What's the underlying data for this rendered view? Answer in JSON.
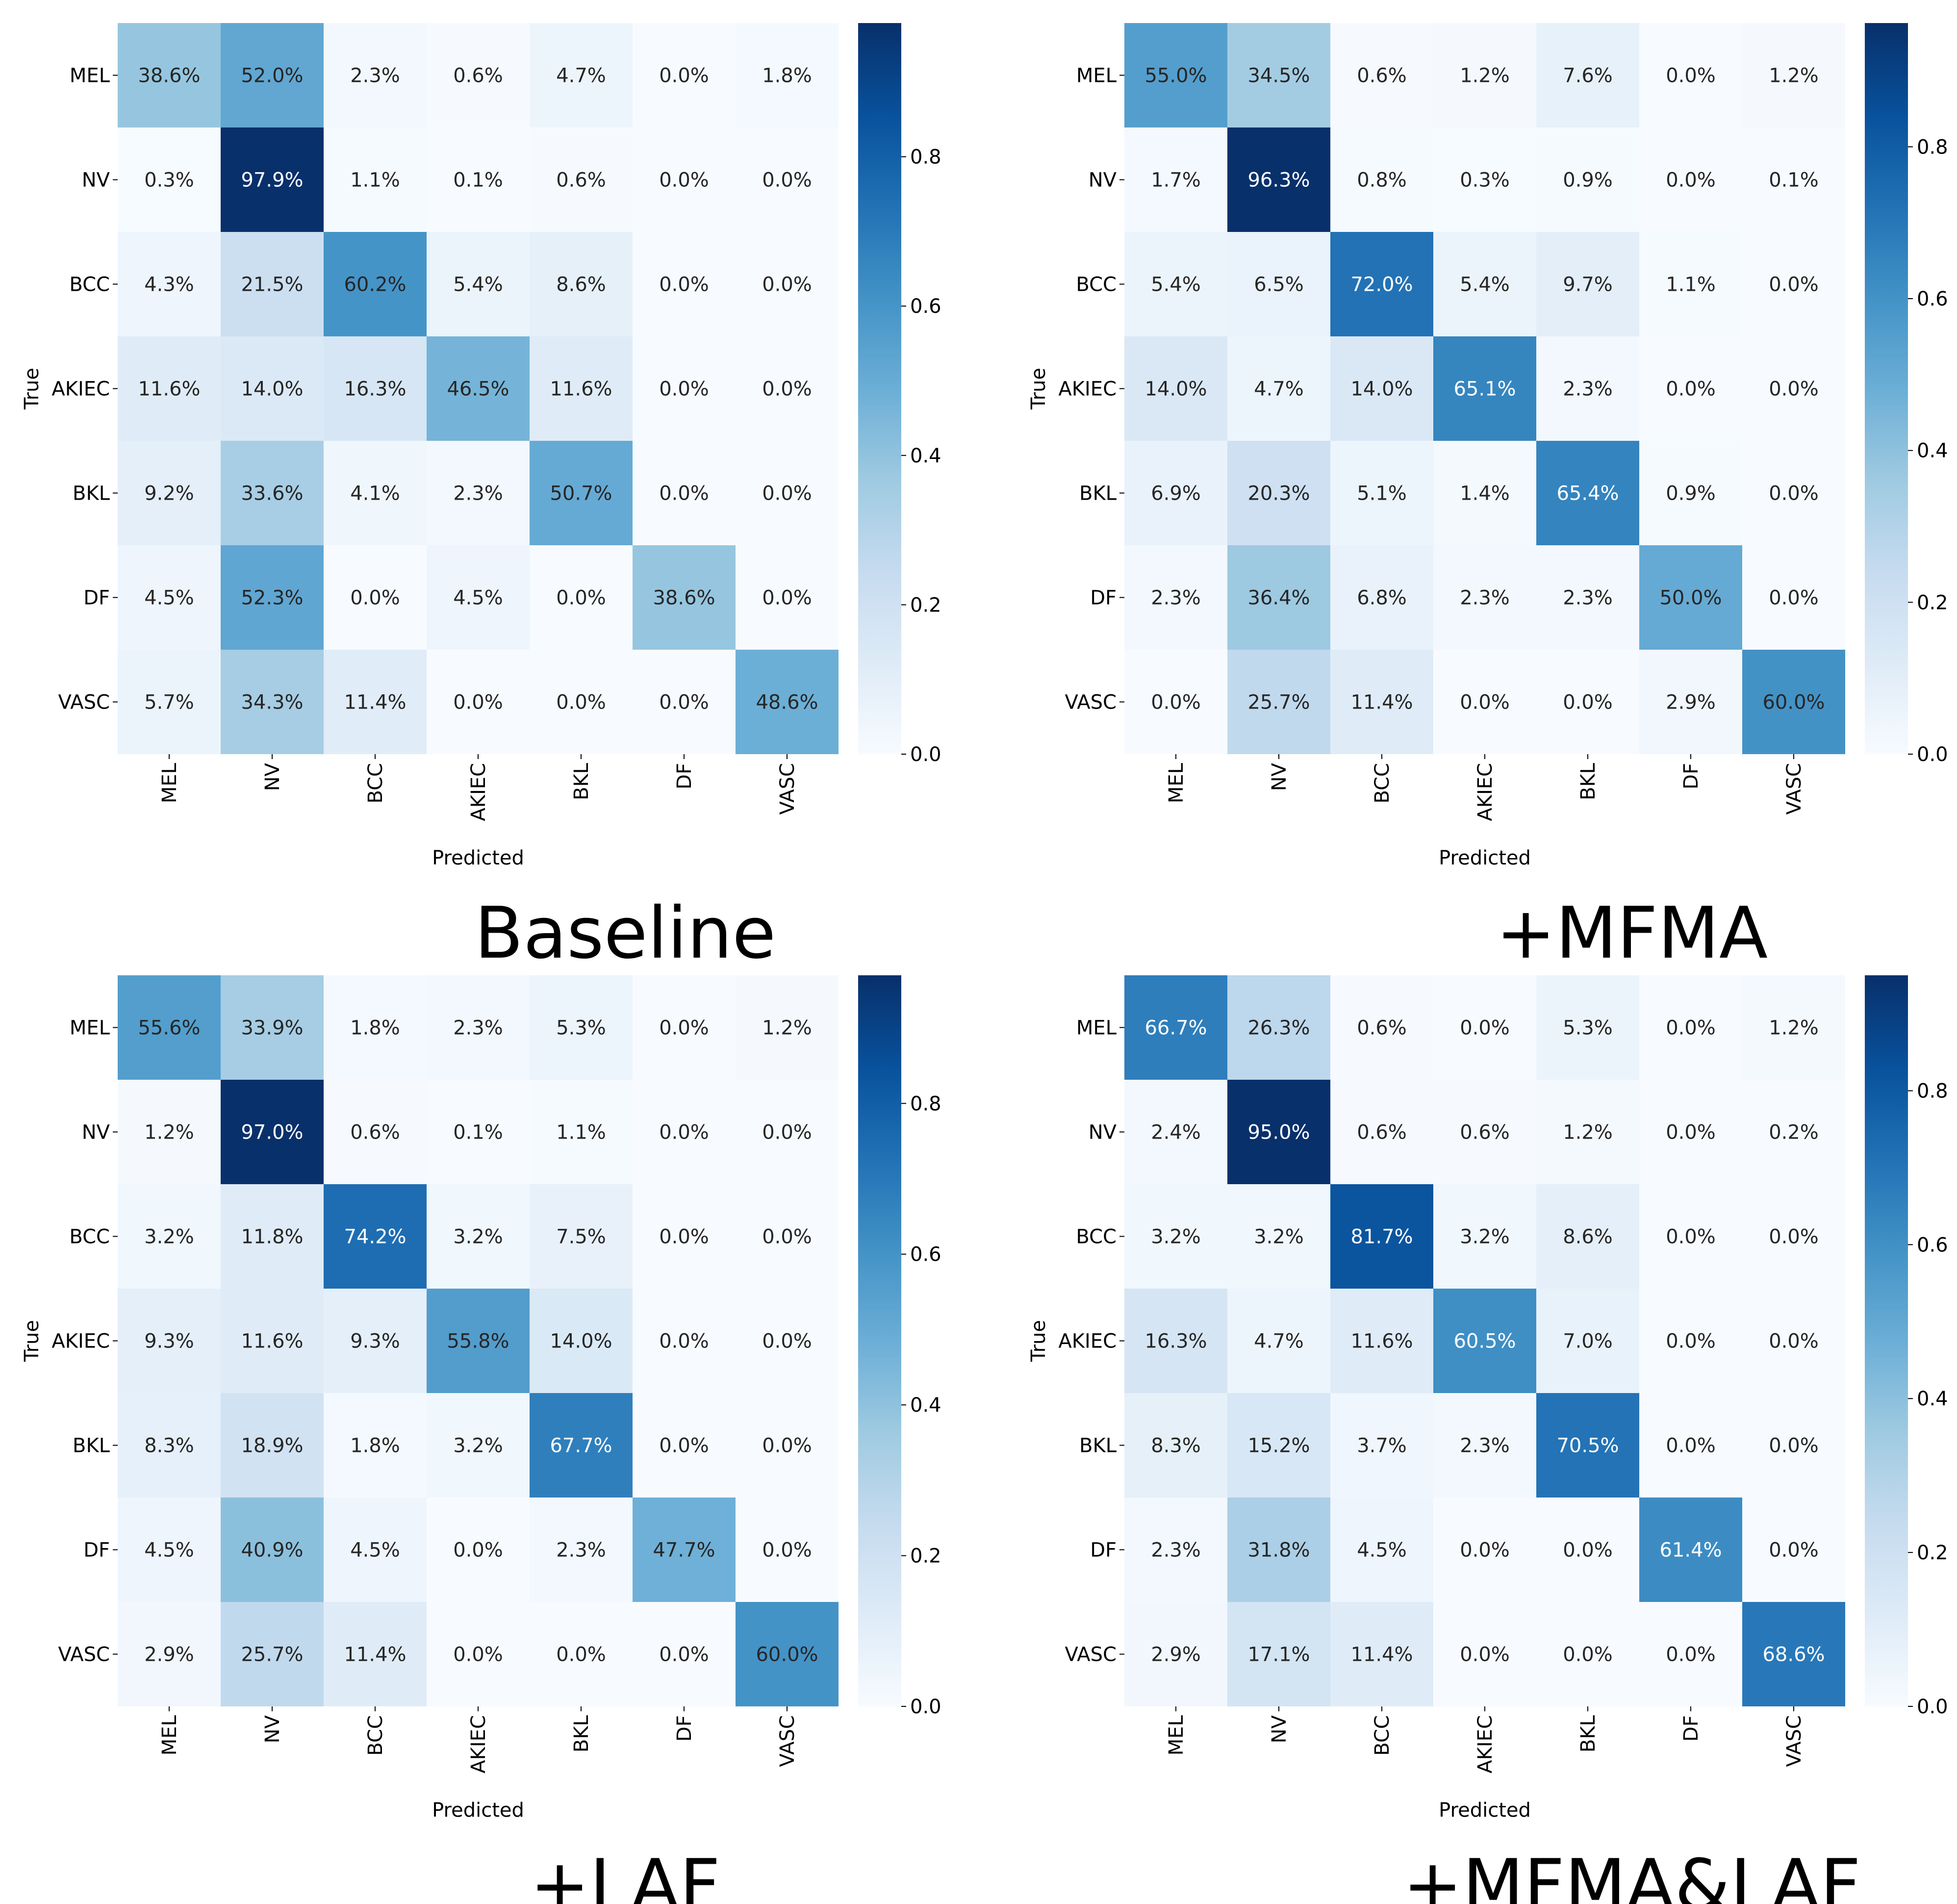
{
  "chart_data": [
    {
      "type": "heatmap",
      "title": "Baseline",
      "xlabel": "Predicted",
      "ylabel": "True",
      "classes": [
        "MEL",
        "NV",
        "BCC",
        "AKIEC",
        "BKL",
        "DF",
        "VASC"
      ],
      "matrix": [
        [
          38.6,
          52.0,
          2.3,
          0.6,
          4.7,
          0.0,
          1.8
        ],
        [
          0.3,
          97.9,
          1.1,
          0.1,
          0.6,
          0.0,
          0.0
        ],
        [
          4.3,
          21.5,
          60.2,
          5.4,
          8.6,
          0.0,
          0.0
        ],
        [
          11.6,
          14.0,
          16.3,
          46.5,
          11.6,
          0.0,
          0.0
        ],
        [
          9.2,
          33.6,
          4.1,
          2.3,
          50.7,
          0.0,
          0.0
        ],
        [
          4.5,
          52.3,
          0.0,
          4.5,
          0.0,
          38.6,
          0.0
        ],
        [
          5.7,
          34.3,
          11.4,
          0.0,
          0.0,
          0.0,
          48.6
        ]
      ],
      "value_suffix": "%",
      "colorbar": {
        "range": [
          0.0,
          0.979
        ],
        "ticks": [
          "0.0",
          "0.2",
          "0.4",
          "0.6",
          "0.8"
        ],
        "tick_values": [
          0.0,
          0.2,
          0.4,
          0.6,
          0.8
        ]
      }
    },
    {
      "type": "heatmap",
      "title": "+MFMA",
      "xlabel": "Predicted",
      "ylabel": "True",
      "classes": [
        "MEL",
        "NV",
        "BCC",
        "AKIEC",
        "BKL",
        "DF",
        "VASC"
      ],
      "matrix": [
        [
          55.0,
          34.5,
          0.6,
          1.2,
          7.6,
          0.0,
          1.2
        ],
        [
          1.7,
          96.3,
          0.8,
          0.3,
          0.9,
          0.0,
          0.1
        ],
        [
          5.4,
          6.5,
          72.0,
          5.4,
          9.7,
          1.1,
          0.0
        ],
        [
          14.0,
          4.7,
          14.0,
          65.1,
          2.3,
          0.0,
          0.0
        ],
        [
          6.9,
          20.3,
          5.1,
          1.4,
          65.4,
          0.9,
          0.0
        ],
        [
          2.3,
          36.4,
          6.8,
          2.3,
          2.3,
          50.0,
          0.0
        ],
        [
          0.0,
          25.7,
          11.4,
          0.0,
          0.0,
          2.9,
          60.0
        ]
      ],
      "value_suffix": "%",
      "colorbar": {
        "range": [
          0.0,
          0.963
        ],
        "ticks": [
          "0.0",
          "0.2",
          "0.4",
          "0.6",
          "0.8"
        ],
        "tick_values": [
          0.0,
          0.2,
          0.4,
          0.6,
          0.8
        ]
      }
    },
    {
      "type": "heatmap",
      "title": "+LAF",
      "xlabel": "Predicted",
      "ylabel": "True",
      "classes": [
        "MEL",
        "NV",
        "BCC",
        "AKIEC",
        "BKL",
        "DF",
        "VASC"
      ],
      "matrix": [
        [
          55.6,
          33.9,
          1.8,
          2.3,
          5.3,
          0.0,
          1.2
        ],
        [
          1.2,
          97.0,
          0.6,
          0.1,
          1.1,
          0.0,
          0.0
        ],
        [
          3.2,
          11.8,
          74.2,
          3.2,
          7.5,
          0.0,
          0.0
        ],
        [
          9.3,
          11.6,
          9.3,
          55.8,
          14.0,
          0.0,
          0.0
        ],
        [
          8.3,
          18.9,
          1.8,
          3.2,
          67.7,
          0.0,
          0.0
        ],
        [
          4.5,
          40.9,
          4.5,
          0.0,
          2.3,
          47.7,
          0.0
        ],
        [
          2.9,
          25.7,
          11.4,
          0.0,
          0.0,
          0.0,
          60.0
        ]
      ],
      "value_suffix": "%",
      "colorbar": {
        "range": [
          0.0,
          0.97
        ],
        "ticks": [
          "0.0",
          "0.2",
          "0.4",
          "0.6",
          "0.8"
        ],
        "tick_values": [
          0.0,
          0.2,
          0.4,
          0.6,
          0.8
        ]
      }
    },
    {
      "type": "heatmap",
      "title": "+MFMA&LAF",
      "xlabel": "Predicted",
      "ylabel": "True",
      "classes": [
        "MEL",
        "NV",
        "BCC",
        "AKIEC",
        "BKL",
        "DF",
        "VASC"
      ],
      "matrix": [
        [
          66.7,
          26.3,
          0.6,
          0.0,
          5.3,
          0.0,
          1.2
        ],
        [
          2.4,
          95.0,
          0.6,
          0.6,
          1.2,
          0.0,
          0.2
        ],
        [
          3.2,
          3.2,
          81.7,
          3.2,
          8.6,
          0.0,
          0.0
        ],
        [
          16.3,
          4.7,
          11.6,
          60.5,
          7.0,
          0.0,
          0.0
        ],
        [
          8.3,
          15.2,
          3.7,
          2.3,
          70.5,
          0.0,
          0.0
        ],
        [
          2.3,
          31.8,
          4.5,
          0.0,
          0.0,
          61.4,
          0.0
        ],
        [
          2.9,
          17.1,
          11.4,
          0.0,
          0.0,
          0.0,
          68.6
        ]
      ],
      "value_suffix": "%",
      "colorbar": {
        "range": [
          0.0,
          0.95
        ],
        "ticks": [
          "0.0",
          "0.2",
          "0.4",
          "0.6",
          "0.8"
        ],
        "tick_values": [
          0.0,
          0.2,
          0.4,
          0.6,
          0.8
        ]
      }
    }
  ]
}
